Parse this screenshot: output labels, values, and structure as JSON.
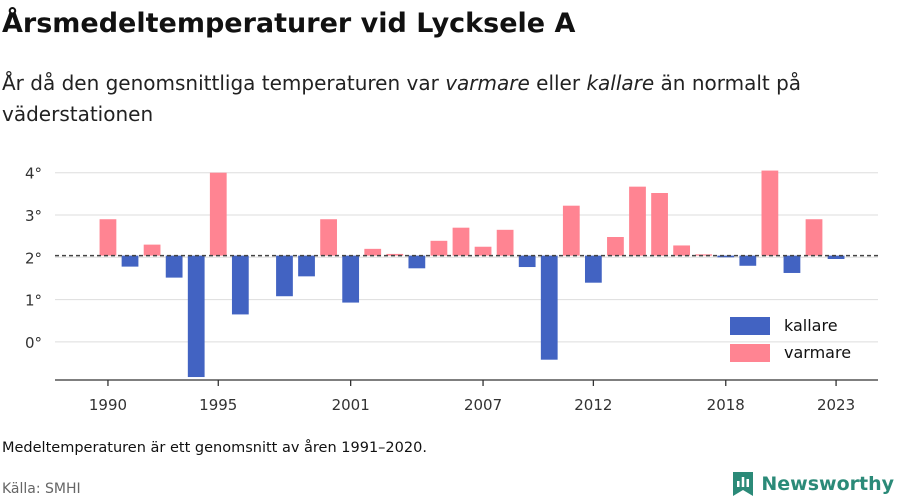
{
  "title": "Årsmedeltemperaturer vid Lycksele A",
  "subtitle": {
    "part1": "År då den genomsnittliga temperaturen var ",
    "warm_word": "varmare",
    "part2": " eller ",
    "cold_word": "kallare",
    "part3": " än normalt på väderstationen"
  },
  "note": "Medeltemperaturen är ett genomsnitt av åren 1991–2020.",
  "source": "Källa: SMHI",
  "brand": {
    "name": "Newsworthy",
    "icon": "newsworthy-logo-icon"
  },
  "colors": {
    "warm": "#ff8492",
    "cold": "#4263c2",
    "axis": "#333333",
    "grid": "#dddddd"
  },
  "chart_data": {
    "type": "bar",
    "title": "Årsmedeltemperaturer vid Lycksele A",
    "baseline": 2.04,
    "ylim": [
      -0.9,
      4.3
    ],
    "yticks": [
      0,
      1,
      2,
      3,
      4
    ],
    "ytick_labels": [
      "0°",
      "1°",
      "2°",
      "3°",
      "4°"
    ],
    "xticks": [
      1990,
      1995,
      2001,
      2007,
      2012,
      2018,
      2023
    ],
    "xlim": [
      1987.6,
      2024.9
    ],
    "grid": true,
    "legend": {
      "position": "bottom-right",
      "entries": [
        {
          "name": "kallare",
          "color": "#4263c2"
        },
        {
          "name": "varmare",
          "color": "#ff8492"
        }
      ]
    },
    "years": [
      1990,
      1991,
      1992,
      1993,
      1994,
      1995,
      1996,
      1997,
      1998,
      1999,
      2000,
      2001,
      2002,
      2003,
      2004,
      2005,
      2006,
      2007,
      2008,
      2009,
      2010,
      2011,
      2012,
      2013,
      2014,
      2015,
      2016,
      2017,
      2018,
      2019,
      2020,
      2021,
      2022,
      2023
    ],
    "values": [
      2.9,
      1.78,
      2.3,
      1.52,
      -0.83,
      4.0,
      0.65,
      null,
      1.08,
      1.55,
      2.9,
      0.93,
      2.2,
      2.08,
      1.74,
      2.39,
      2.7,
      2.25,
      2.65,
      1.77,
      -0.42,
      3.22,
      1.4,
      2.48,
      3.67,
      3.52,
      2.28,
      2.07,
      2.0,
      1.8,
      4.05,
      1.63,
      2.9,
      1.96
    ]
  }
}
